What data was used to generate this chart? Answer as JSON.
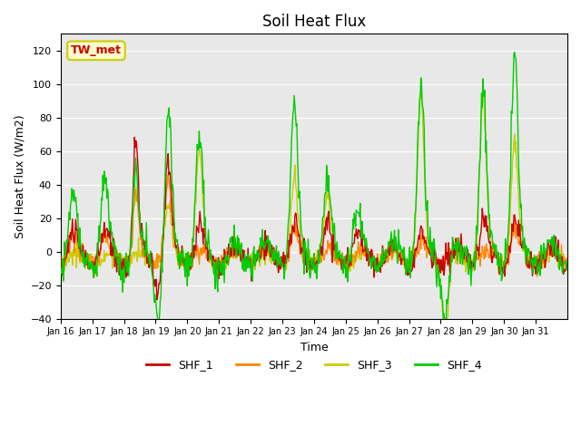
{
  "title": "Soil Heat Flux",
  "ylabel": "Soil Heat Flux (W/m2)",
  "xlabel": "Time",
  "ylim": [
    -40,
    130
  ],
  "yticks": [
    -40,
    -20,
    0,
    20,
    40,
    60,
    80,
    100,
    120
  ],
  "colors": {
    "SHF_1": "#cc0000",
    "SHF_2": "#ff8800",
    "SHF_3": "#cccc00",
    "SHF_4": "#00cc00"
  },
  "annotation": "TW_met",
  "annotation_color": "#cc0000",
  "annotation_bg": "#ffffcc",
  "annotation_border": "#cccc00",
  "bg_color": "#e8e8e8",
  "n_days": 16,
  "pts_per_day": 48,
  "x_tick_labels": [
    "Jan 16",
    "Jan 17",
    "Jan 18",
    "Jan 19",
    "Jan 20",
    "Jan 21",
    "Jan 22",
    "Jan 23",
    "Jan 24",
    "Jan 25",
    "Jan 26",
    "Jan 27",
    "Jan 28",
    "Jan 29",
    "Jan 30",
    "Jan 31"
  ],
  "legend_labels": [
    "SHF_1",
    "SHF_2",
    "SHF_3",
    "SHF_4"
  ],
  "linewidth": 1.0
}
